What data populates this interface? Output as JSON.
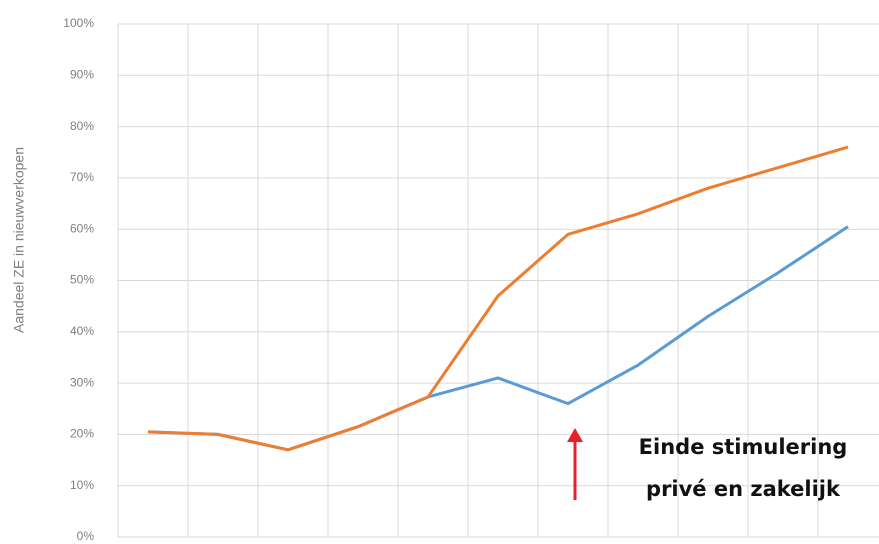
{
  "chart_data": {
    "type": "line",
    "y_label": "Aandeel ZE in nieuwverkopen",
    "annotation": [
      "Einde stimulering",
      "privé en zakelijk"
    ],
    "categories": [
      null,
      null,
      null,
      null,
      null,
      null,
      null,
      null,
      null,
      null,
      null
    ],
    "series": [
      {
        "color": "#5b9bd5",
        "values": [
          20.5,
          20,
          17,
          21.5,
          27.3,
          31,
          26,
          33.5,
          43,
          51.5,
          60.5
        ]
      },
      {
        "color": "#ed7d31",
        "values": [
          20.5,
          20,
          17,
          21.5,
          27.3,
          47,
          59,
          63,
          68,
          72,
          76
        ]
      }
    ],
    "ylim": [
      0,
      100
    ],
    "yticks": [
      {
        "value": 0,
        "label": "0%"
      },
      {
        "value": 10,
        "label": "10%"
      },
      {
        "value": 20,
        "label": "20%"
      },
      {
        "value": 30,
        "label": "30%"
      },
      {
        "value": 40,
        "label": "40%"
      },
      {
        "value": 50,
        "label": "50%"
      },
      {
        "value": 60,
        "label": "60%"
      },
      {
        "value": 70,
        "label": "70%"
      },
      {
        "value": 80,
        "label": "80%"
      },
      {
        "value": 90,
        "label": "90%"
      },
      {
        "value": 100,
        "label": "100%"
      }
    ],
    "grid": true
  }
}
